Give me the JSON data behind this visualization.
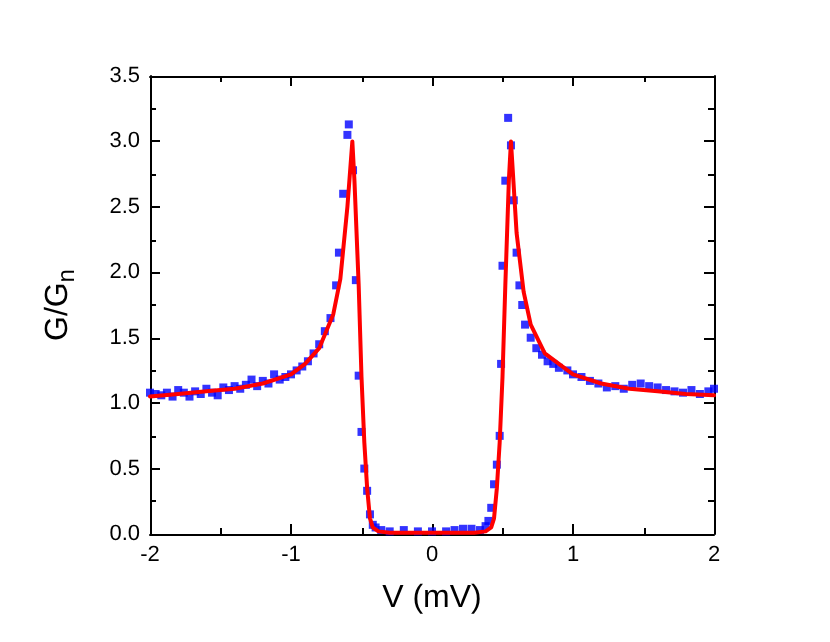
{
  "chart_data": {
    "type": "scatter",
    "xlabel": "V (mV)",
    "ylabel": "G/G$_{n}$",
    "xlim": [
      -2,
      2
    ],
    "xticks": [
      -2,
      -1,
      0,
      1,
      2
    ],
    "ylim": [
      0,
      3.5
    ],
    "yticks": [
      {
        "value": 0,
        "label": "0.0"
      },
      {
        "value": 0.5,
        "label": "0.5"
      },
      {
        "value": 1,
        "label": "1.0"
      },
      {
        "value": 1.5,
        "label": "1.5"
      },
      {
        "value": 2,
        "label": "2.0"
      },
      {
        "value": 2.5,
        "label": "2.5"
      },
      {
        "value": 3,
        "label": "3.0"
      },
      {
        "value": 3.5,
        "label": "3.5"
      }
    ],
    "grid": false,
    "marker": "square",
    "series": [
      {
        "type": "scatter",
        "color": "#0000ff",
        "x": [
          -2.0,
          -1.96,
          -1.92,
          -1.88,
          -1.84,
          -1.8,
          -1.76,
          -1.72,
          -1.68,
          -1.64,
          -1.6,
          -1.56,
          -1.52,
          -1.48,
          -1.44,
          -1.4,
          -1.36,
          -1.32,
          -1.28,
          -1.24,
          -1.2,
          -1.16,
          -1.12,
          -1.08,
          -1.04,
          -1.0,
          -0.96,
          -0.92,
          -0.88,
          -0.84,
          -0.8,
          -0.76,
          -0.72,
          -0.68,
          -0.66,
          -0.63,
          -0.6,
          -0.59,
          -0.56,
          -0.54,
          -0.52,
          -0.5,
          -0.48,
          -0.46,
          -0.44,
          -0.42,
          -0.4,
          -0.36,
          -0.3,
          -0.2,
          -0.1,
          0,
          0.1,
          0.16,
          0.22,
          0.28,
          0.34,
          0.38,
          0.4,
          0.42,
          0.44,
          0.46,
          0.48,
          0.49,
          0.5,
          0.52,
          0.54,
          0.56,
          0.58,
          0.6,
          0.62,
          0.64,
          0.66,
          0.7,
          0.74,
          0.78,
          0.82,
          0.86,
          0.9,
          0.96,
          1.0,
          1.06,
          1.12,
          1.18,
          1.24,
          1.3,
          1.36,
          1.42,
          1.48,
          1.54,
          1.6,
          1.66,
          1.72,
          1.78,
          1.84,
          1.9,
          1.96,
          2.0
        ],
        "values": [
          1.08,
          1.07,
          1.06,
          1.08,
          1.05,
          1.1,
          1.08,
          1.05,
          1.09,
          1.07,
          1.11,
          1.08,
          1.06,
          1.12,
          1.1,
          1.13,
          1.11,
          1.14,
          1.18,
          1.13,
          1.17,
          1.15,
          1.22,
          1.18,
          1.2,
          1.22,
          1.25,
          1.28,
          1.32,
          1.38,
          1.45,
          1.55,
          1.65,
          1.9,
          2.15,
          2.6,
          3.05,
          3.13,
          2.78,
          1.94,
          1.21,
          0.78,
          0.5,
          0.33,
          0.15,
          0.07,
          0.05,
          0.03,
          0.02,
          0.03,
          0.02,
          0.02,
          0.02,
          0.03,
          0.04,
          0.04,
          0.03,
          0.06,
          0.1,
          0.2,
          0.38,
          0.53,
          0.75,
          1.3,
          2.05,
          2.7,
          3.18,
          2.97,
          2.55,
          2.15,
          1.9,
          1.75,
          1.6,
          1.5,
          1.42,
          1.37,
          1.32,
          1.3,
          1.27,
          1.25,
          1.22,
          1.2,
          1.17,
          1.15,
          1.12,
          1.13,
          1.11,
          1.14,
          1.15,
          1.13,
          1.12,
          1.1,
          1.09,
          1.08,
          1.1,
          1.07,
          1.09,
          1.11
        ]
      },
      {
        "type": "line",
        "color": "#ff0000",
        "marker": "none",
        "line_style": "solid",
        "x": [
          -2,
          -1.8,
          -1.6,
          -1.4,
          -1.2,
          -1.0,
          -0.9,
          -0.8,
          -0.7,
          -0.65,
          -0.6,
          -0.565,
          -0.55,
          -0.52,
          -0.5,
          -0.48,
          -0.46,
          -0.44,
          -0.42,
          -0.38,
          -0.3,
          0,
          0.3,
          0.38,
          0.42,
          0.44,
          0.46,
          0.48,
          0.5,
          0.52,
          0.545,
          0.56,
          0.6,
          0.65,
          0.7,
          0.8,
          0.9,
          1.0,
          1.2,
          1.4,
          1.6,
          1.8,
          2.0
        ],
        "values": [
          1.05,
          1.07,
          1.09,
          1.11,
          1.15,
          1.22,
          1.3,
          1.42,
          1.68,
          1.95,
          2.5,
          3.0,
          2.7,
          1.9,
          1.2,
          0.7,
          0.35,
          0.12,
          0.05,
          0.02,
          0.01,
          0.01,
          0.01,
          0.02,
          0.05,
          0.12,
          0.35,
          0.7,
          1.2,
          1.9,
          2.7,
          3.0,
          2.3,
          1.85,
          1.6,
          1.38,
          1.3,
          1.22,
          1.15,
          1.11,
          1.09,
          1.07,
          1.06
        ]
      }
    ]
  }
}
